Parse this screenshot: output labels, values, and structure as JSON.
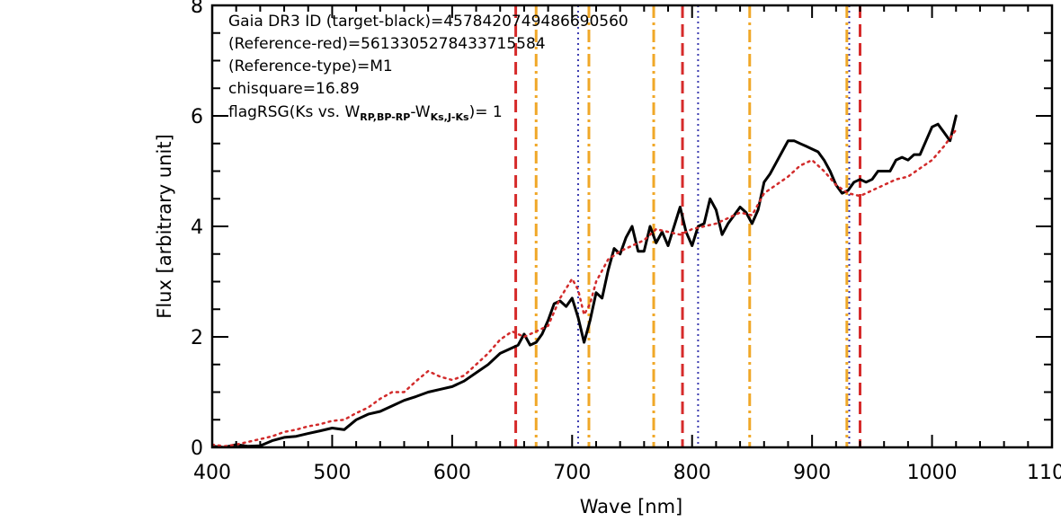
{
  "chart_data": {
    "type": "line",
    "xlabel": "Wave [nm]",
    "ylabel": "Flux [arbitrary unit]",
    "xlim": [
      400,
      1100
    ],
    "ylim": [
      0,
      8
    ],
    "x_ticks": [
      400,
      500,
      600,
      700,
      800,
      900,
      1000,
      1100
    ],
    "x_tick_labels": [
      "400",
      "500",
      "600",
      "700",
      "800",
      "900",
      "1000",
      "1100"
    ],
    "y_ticks": [
      0,
      2,
      4,
      6,
      8
    ],
    "y_tick_labels": [
      "0",
      "2",
      "4",
      "6",
      "8"
    ],
    "annotations": [
      "Gaia DR3 ID (target-black)=4578420749486690560",
      "(Reference-red)=5613305278433715584",
      "(Reference-type)=M1",
      "chisquare=16.89"
    ],
    "flag_annotation": {
      "prefix": "flagRSG(Ks vs. W",
      "sub1": "RP,BP-RP",
      "mid": "-W",
      "sub2": "Ks,J-Ks",
      "suffix": ")= 1"
    },
    "series": [
      {
        "style": "solid",
        "color": "#000000",
        "x": [
          400,
          410,
          420,
          430,
          440,
          450,
          460,
          470,
          480,
          490,
          500,
          510,
          520,
          530,
          540,
          550,
          560,
          570,
          580,
          590,
          600,
          610,
          620,
          630,
          640,
          650,
          655,
          660,
          665,
          670,
          675,
          680,
          685,
          690,
          695,
          700,
          705,
          710,
          715,
          720,
          725,
          730,
          735,
          740,
          745,
          750,
          755,
          760,
          765,
          770,
          775,
          780,
          785,
          790,
          795,
          800,
          805,
          810,
          815,
          820,
          825,
          830,
          835,
          840,
          845,
          850,
          855,
          860,
          865,
          870,
          875,
          880,
          885,
          890,
          895,
          900,
          905,
          910,
          915,
          920,
          925,
          930,
          935,
          940,
          945,
          950,
          955,
          960,
          965,
          970,
          975,
          980,
          985,
          990,
          995,
          1000,
          1005,
          1010,
          1015,
          1020
        ],
        "y": [
          0.02,
          0.0,
          0.05,
          0.02,
          0.03,
          0.12,
          0.18,
          0.2,
          0.25,
          0.3,
          0.35,
          0.32,
          0.5,
          0.6,
          0.65,
          0.75,
          0.85,
          0.92,
          1.0,
          1.05,
          1.1,
          1.2,
          1.35,
          1.5,
          1.7,
          1.8,
          1.85,
          2.05,
          1.85,
          1.9,
          2.05,
          2.3,
          2.6,
          2.65,
          2.55,
          2.7,
          2.35,
          1.9,
          2.3,
          2.8,
          2.7,
          3.2,
          3.6,
          3.5,
          3.8,
          4.0,
          3.55,
          3.55,
          4.0,
          3.7,
          3.9,
          3.65,
          4.0,
          4.35,
          3.9,
          3.65,
          4.0,
          4.05,
          4.5,
          4.3,
          3.85,
          4.05,
          4.2,
          4.35,
          4.25,
          4.05,
          4.3,
          4.8,
          4.95,
          5.15,
          5.35,
          5.55,
          5.55,
          5.5,
          5.45,
          5.4,
          5.35,
          5.2,
          5.0,
          4.75,
          4.6,
          4.65,
          4.8,
          4.85,
          4.8,
          4.85,
          5.0,
          5.0,
          5.0,
          5.2,
          5.25,
          5.2,
          5.3,
          5.3,
          5.55,
          5.8,
          5.85,
          5.7,
          5.55,
          6.0
        ]
      },
      {
        "style": "dotted",
        "color": "#d22b2b",
        "x": [
          400,
          410,
          420,
          430,
          440,
          450,
          460,
          470,
          480,
          490,
          500,
          510,
          520,
          530,
          540,
          550,
          560,
          570,
          580,
          590,
          600,
          610,
          620,
          630,
          640,
          650,
          660,
          670,
          680,
          690,
          700,
          705,
          710,
          715,
          720,
          730,
          740,
          750,
          760,
          770,
          780,
          790,
          800,
          810,
          820,
          830,
          840,
          850,
          860,
          870,
          880,
          890,
          900,
          910,
          920,
          930,
          940,
          950,
          960,
          970,
          980,
          990,
          1000,
          1010,
          1020
        ],
        "y": [
          0.05,
          0.02,
          0.05,
          0.1,
          0.15,
          0.2,
          0.28,
          0.32,
          0.38,
          0.42,
          0.48,
          0.5,
          0.62,
          0.72,
          0.88,
          1.0,
          1.0,
          1.2,
          1.38,
          1.28,
          1.22,
          1.3,
          1.5,
          1.7,
          1.95,
          2.1,
          2.0,
          2.1,
          2.2,
          2.7,
          3.05,
          2.85,
          2.4,
          2.6,
          3.0,
          3.4,
          3.55,
          3.65,
          3.75,
          3.95,
          3.9,
          3.85,
          3.95,
          4.0,
          4.05,
          4.15,
          4.25,
          4.2,
          4.6,
          4.75,
          4.9,
          5.1,
          5.2,
          5.0,
          4.75,
          4.6,
          4.55,
          4.65,
          4.75,
          4.85,
          4.9,
          5.05,
          5.2,
          5.45,
          5.75
        ]
      }
    ],
    "vertical_lines": [
      {
        "x": 653,
        "style": "dashed",
        "color": "#d62b2b"
      },
      {
        "x": 792,
        "style": "dashed",
        "color": "#d62b2b"
      },
      {
        "x": 940,
        "style": "dashed",
        "color": "#d62b2b"
      },
      {
        "x": 670,
        "style": "dashdot",
        "color": "#f0a828"
      },
      {
        "x": 714,
        "style": "dashdot",
        "color": "#f0a828"
      },
      {
        "x": 768,
        "style": "dashdot",
        "color": "#f0a828"
      },
      {
        "x": 848,
        "style": "dashdot",
        "color": "#f0a828"
      },
      {
        "x": 929,
        "style": "dashdot",
        "color": "#f0a828"
      },
      {
        "x": 705,
        "style": "dotted",
        "color": "#3b3bb0"
      },
      {
        "x": 805,
        "style": "dotted",
        "color": "#3b3bb0"
      },
      {
        "x": 931,
        "style": "dotted",
        "color": "#3b3bb0"
      }
    ]
  }
}
